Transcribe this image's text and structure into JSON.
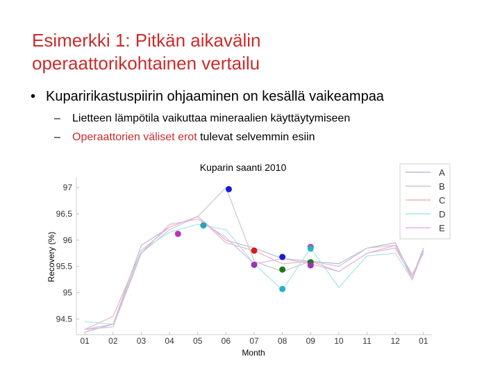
{
  "slide": {
    "title_line1": "Esimerkki 1: Pitkän aikavälin",
    "title_line2": "operaattorikohtainen vertailu",
    "bullet_symbol": "•",
    "bullet": "Kuparirikastuspiirin ohjaaminen on kesällä vaikeampaa",
    "dash": "–",
    "sub1": "Lietteen lämpötila vaikuttaa mineraalien käyttäytymiseen",
    "sub2_red": "Operaattorien väliset erot",
    "sub2_rest": " tulevat selvemmin esiin"
  },
  "chart_data": {
    "type": "line",
    "title": "Kuparin saanti 2010",
    "xlabel": "Month",
    "ylabel": "Recovery (%)",
    "xticks": [
      "01",
      "02",
      "03",
      "04",
      "05",
      "06",
      "07",
      "08",
      "09",
      "10",
      "11",
      "12",
      "01"
    ],
    "yticks": [
      94.5,
      95,
      95.5,
      96,
      96.5,
      97
    ],
    "ylim": [
      94.2,
      97.2
    ],
    "xlim": [
      0.7,
      13.3
    ],
    "legend_position": "top-right",
    "series": [
      {
        "name": "A",
        "color": "#b8b8e0",
        "x": [
          1,
          2,
          3,
          4,
          5,
          6,
          7,
          8,
          9,
          10,
          11,
          12,
          12.6,
          13
        ],
        "y": [
          94.25,
          94.4,
          95.9,
          96.25,
          96.45,
          96.0,
          95.85,
          95.65,
          95.6,
          95.55,
          95.85,
          95.95,
          95.3,
          95.85
        ]
      },
      {
        "name": "B",
        "color": "#c8c8c8",
        "x": [
          1,
          2,
          3,
          4,
          5,
          6,
          7,
          8,
          9,
          10,
          11,
          12,
          12.6,
          13
        ],
        "y": [
          94.3,
          94.35,
          95.75,
          96.2,
          96.45,
          97.0,
          95.6,
          95.4,
          95.6,
          95.5,
          95.85,
          95.9,
          95.35,
          95.75
        ]
      },
      {
        "name": "C",
        "color": "#f0b4b4",
        "x": [
          1,
          2,
          3,
          4,
          5,
          6,
          7,
          8,
          9,
          10,
          11,
          12,
          12.6,
          13
        ],
        "y": [
          94.3,
          94.55,
          95.8,
          96.25,
          96.45,
          95.95,
          95.8,
          95.55,
          95.6,
          95.4,
          95.75,
          95.85,
          95.3,
          95.8
        ]
      },
      {
        "name": "D",
        "color": "#a8e4e4",
        "x": [
          1,
          2,
          3,
          4,
          5,
          6,
          7,
          8,
          9,
          10,
          11,
          12,
          12.6,
          13
        ],
        "y": [
          94.45,
          94.4,
          95.8,
          96.15,
          96.3,
          96.2,
          95.55,
          95.05,
          95.85,
          95.1,
          95.7,
          95.75,
          95.25,
          95.8
        ]
      },
      {
        "name": "E",
        "color": "#e0b4e8",
        "x": [
          1,
          2,
          3,
          4,
          5,
          6,
          7,
          8,
          9,
          10,
          11,
          12,
          12.6,
          13
        ],
        "y": [
          94.3,
          94.4,
          95.75,
          96.3,
          96.4,
          96.05,
          95.55,
          95.65,
          95.55,
          95.4,
          95.75,
          95.9,
          95.25,
          95.8
        ]
      }
    ],
    "markers": [
      {
        "x": 4.3,
        "y": 96.12,
        "color": "#bb33bb"
      },
      {
        "x": 5.2,
        "y": 96.28,
        "color": "#22a6b3"
      },
      {
        "x": 6.1,
        "y": 96.97,
        "color": "#1a1ad4"
      },
      {
        "x": 7.0,
        "y": 95.8,
        "color": "#d41a1a"
      },
      {
        "x": 7.0,
        "y": 95.53,
        "color": "#9933bb"
      },
      {
        "x": 8.0,
        "y": 95.68,
        "color": "#1a1ad4"
      },
      {
        "x": 8.0,
        "y": 95.44,
        "color": "#1a7a1a"
      },
      {
        "x": 8.0,
        "y": 95.07,
        "color": "#22b4c8"
      },
      {
        "x": 9.0,
        "y": 95.87,
        "color": "#bb33bb"
      },
      {
        "x": 9.0,
        "y": 95.84,
        "color": "#22b4c8"
      },
      {
        "x": 9.0,
        "y": 95.58,
        "color": "#1a7a1a"
      },
      {
        "x": 9.0,
        "y": 95.52,
        "color": "#9933bb"
      }
    ]
  }
}
